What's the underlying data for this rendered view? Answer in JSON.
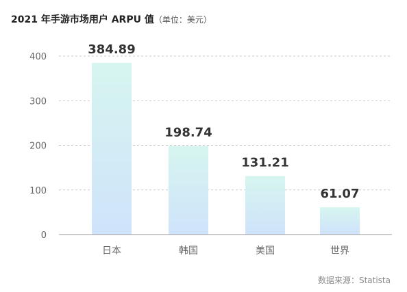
{
  "title": "2021 年手游市场用户 ARPU 值",
  "subtitle": "（单位：美元）",
  "source": "数据来源：Statista",
  "colors": {
    "bar_top": "#d6f5ef",
    "bar_bottom": "#cfe3fb",
    "grid": "#c9c9c9",
    "axis": "#9a9a9a",
    "tick_text": "#666666",
    "label_text": "#333333"
  },
  "chart_data": {
    "type": "bar",
    "categories": [
      "日本",
      "韩国",
      "美国",
      "世界"
    ],
    "values": [
      384.89,
      198.74,
      131.21,
      61.07
    ],
    "data_labels": [
      "384.89",
      "198.74",
      "131.21",
      "61.07"
    ],
    "yticks": [
      0,
      100,
      200,
      300,
      400
    ],
    "ylim": [
      0,
      400
    ],
    "title": "2021 年手游市场用户 ARPU 值",
    "xlabel": "",
    "ylabel": "",
    "grid": true
  }
}
